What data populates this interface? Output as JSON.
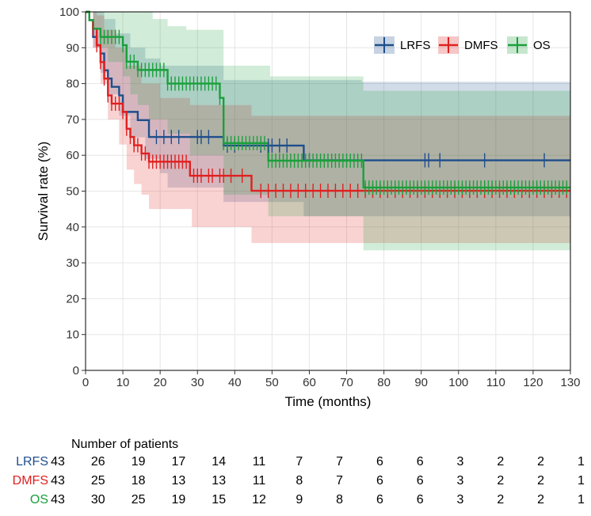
{
  "chart_data": {
    "type": "line",
    "subtype": "kaplan-meier",
    "xlabel": "Time (months)",
    "ylabel": "Survival rate (%)",
    "xlim": [
      0,
      130
    ],
    "ylim": [
      0,
      100
    ],
    "xticks": [
      0,
      10,
      20,
      30,
      40,
      50,
      60,
      70,
      80,
      90,
      100,
      110,
      120,
      130
    ],
    "yticks": [
      0,
      10,
      20,
      30,
      40,
      50,
      60,
      70,
      80,
      90,
      100
    ],
    "grid": true,
    "legend_position": "top-right",
    "series": [
      {
        "name": "LRFS",
        "color": "#1f4e8c",
        "steps": [
          [
            0,
            100
          ],
          [
            1,
            97.7
          ],
          [
            2,
            93
          ],
          [
            3,
            90.7
          ],
          [
            4,
            88.4
          ],
          [
            5,
            83.7
          ],
          [
            6,
            81.4
          ],
          [
            7,
            79.1
          ],
          [
            9,
            76.7
          ],
          [
            10,
            72.1
          ],
          [
            14,
            69.8
          ],
          [
            17,
            65.1
          ],
          [
            36,
            65.1
          ],
          [
            37,
            62.7
          ],
          [
            58,
            62.7
          ],
          [
            58.5,
            58.6
          ],
          [
            130,
            58.6
          ]
        ],
        "ci_upper": [
          [
            0,
            100
          ],
          [
            3,
            100
          ],
          [
            5,
            98
          ],
          [
            8,
            94
          ],
          [
            12,
            90
          ],
          [
            16,
            87
          ],
          [
            20,
            85
          ],
          [
            36,
            85
          ],
          [
            37,
            81
          ],
          [
            60,
            81
          ],
          [
            74,
            80.5
          ],
          [
            130,
            80.5
          ]
        ],
        "ci_lower": [
          [
            0,
            100
          ],
          [
            2,
            90
          ],
          [
            4,
            83
          ],
          [
            6,
            77
          ],
          [
            9,
            71
          ],
          [
            12,
            65
          ],
          [
            16,
            59
          ],
          [
            20,
            55
          ],
          [
            22,
            51
          ],
          [
            36,
            51
          ],
          [
            37,
            47
          ],
          [
            58,
            47
          ],
          [
            58.5,
            43
          ],
          [
            130,
            43
          ]
        ],
        "censor_times": [
          19,
          21,
          23,
          25,
          30,
          31,
          33,
          38,
          40,
          47,
          49,
          50,
          52,
          54,
          60,
          91,
          92,
          95,
          107,
          123
        ]
      },
      {
        "name": "DMFS",
        "color": "#e02020",
        "steps": [
          [
            0,
            100
          ],
          [
            1,
            97.7
          ],
          [
            2,
            95.3
          ],
          [
            3,
            90.7
          ],
          [
            4,
            86
          ],
          [
            5,
            81.4
          ],
          [
            6,
            76.7
          ],
          [
            7,
            74.4
          ],
          [
            10,
            72.1
          ],
          [
            11,
            67.4
          ],
          [
            12,
            65.1
          ],
          [
            13,
            62.8
          ],
          [
            15,
            60.5
          ],
          [
            17,
            58.2
          ],
          [
            27,
            58.2
          ],
          [
            28,
            54.3
          ],
          [
            44,
            54.3
          ],
          [
            44.5,
            50.1
          ],
          [
            130,
            50.1
          ]
        ],
        "ci_upper": [
          [
            0,
            100
          ],
          [
            3,
            99
          ],
          [
            5,
            95
          ],
          [
            8,
            90
          ],
          [
            11,
            85
          ],
          [
            15,
            80
          ],
          [
            20,
            76
          ],
          [
            28,
            74
          ],
          [
            44,
            74
          ],
          [
            44.5,
            71
          ],
          [
            130,
            71
          ]
        ],
        "ci_lower": [
          [
            0,
            100
          ],
          [
            2,
            90
          ],
          [
            4,
            80
          ],
          [
            6,
            70
          ],
          [
            9,
            63
          ],
          [
            11,
            56
          ],
          [
            13,
            52
          ],
          [
            15,
            49
          ],
          [
            17,
            45
          ],
          [
            28,
            45
          ],
          [
            28.5,
            40
          ],
          [
            44,
            40
          ],
          [
            44.5,
            35.5
          ],
          [
            130,
            35.5
          ]
        ],
        "censor_times": [
          2,
          3,
          4,
          5,
          6,
          7,
          8,
          9,
          10,
          11,
          12,
          13,
          14,
          15,
          16,
          17,
          18,
          19,
          20,
          21,
          22,
          23,
          24,
          25,
          26,
          27,
          29,
          30,
          31,
          33,
          34,
          36,
          37,
          39,
          42,
          47,
          49,
          51,
          53,
          55,
          57,
          59,
          61,
          63,
          65,
          67,
          69,
          71,
          73,
          75,
          77,
          79,
          81,
          83,
          85,
          87,
          89,
          91,
          93,
          95,
          97,
          99,
          101,
          103,
          105,
          107,
          109,
          111,
          113,
          115,
          117,
          119,
          121,
          123,
          125,
          127,
          129
        ]
      },
      {
        "name": "OS",
        "color": "#1aa03c",
        "steps": [
          [
            0,
            100
          ],
          [
            1,
            97.7
          ],
          [
            2,
            95.3
          ],
          [
            4,
            93
          ],
          [
            10,
            90.7
          ],
          [
            11,
            86.1
          ],
          [
            14,
            83.8
          ],
          [
            16,
            83.8
          ],
          [
            22,
            80
          ],
          [
            36,
            76
          ],
          [
            37,
            63.4
          ],
          [
            48,
            63.4
          ],
          [
            49,
            58.5
          ],
          [
            74,
            58.5
          ],
          [
            74.5,
            51
          ],
          [
            130,
            51
          ]
        ],
        "ci_upper": [
          [
            0,
            100
          ],
          [
            16,
            100
          ],
          [
            18,
            98
          ],
          [
            22,
            96
          ],
          [
            27,
            95
          ],
          [
            36,
            95
          ],
          [
            37,
            85
          ],
          [
            49,
            85
          ],
          [
            49.5,
            82
          ],
          [
            74,
            82
          ],
          [
            74.5,
            78
          ],
          [
            130,
            78
          ]
        ],
        "ci_lower": [
          [
            0,
            100
          ],
          [
            2,
            95
          ],
          [
            4,
            90
          ],
          [
            6,
            86
          ],
          [
            10,
            82
          ],
          [
            12,
            77
          ],
          [
            14,
            74
          ],
          [
            17,
            70
          ],
          [
            22,
            66
          ],
          [
            28,
            60
          ],
          [
            36,
            60
          ],
          [
            37,
            49
          ],
          [
            48,
            49
          ],
          [
            49,
            43
          ],
          [
            74,
            43
          ],
          [
            74.5,
            33.5
          ],
          [
            130,
            33.5
          ]
        ],
        "censor_times": [
          4,
          5,
          6,
          7,
          8,
          9,
          10,
          11,
          12,
          13,
          14,
          15,
          16,
          17,
          18,
          19,
          20,
          21,
          22,
          23,
          24,
          25,
          26,
          27,
          28,
          29,
          30,
          31,
          32,
          33,
          34,
          35,
          36,
          37,
          38,
          39,
          40,
          41,
          42,
          43,
          44,
          45,
          46,
          47,
          48,
          49,
          50,
          51,
          52,
          53,
          54,
          55,
          56,
          57,
          58,
          59,
          60,
          61,
          62,
          63,
          64,
          65,
          66,
          67,
          68,
          69,
          70,
          71,
          72,
          73,
          74,
          75,
          76,
          77,
          78,
          79,
          80,
          81,
          82,
          83,
          84,
          85,
          86,
          87,
          88,
          89,
          90,
          91,
          92,
          93,
          94,
          95,
          96,
          97,
          98,
          99,
          100,
          101,
          102,
          103,
          104,
          105,
          106,
          107,
          108,
          109,
          110,
          111,
          112,
          113,
          114,
          115,
          116,
          117,
          118,
          119,
          120,
          121,
          122,
          123,
          124,
          125,
          126,
          127,
          128,
          129
        ]
      }
    ],
    "risk_table": {
      "title": "Number of patients",
      "rows": [
        {
          "name": "LRFS",
          "color": "#1f4e8c",
          "values": [
            43,
            26,
            19,
            17,
            14,
            11,
            7,
            7,
            6,
            6,
            3,
            2,
            2,
            1
          ]
        },
        {
          "name": "DMFS",
          "color": "#e02020",
          "values": [
            43,
            25,
            18,
            13,
            13,
            11,
            8,
            7,
            6,
            6,
            3,
            2,
            2,
            1
          ]
        },
        {
          "name": "OS",
          "color": "#1aa03c",
          "values": [
            43,
            30,
            25,
            19,
            15,
            12,
            9,
            8,
            6,
            6,
            3,
            2,
            2,
            1
          ]
        }
      ]
    }
  }
}
